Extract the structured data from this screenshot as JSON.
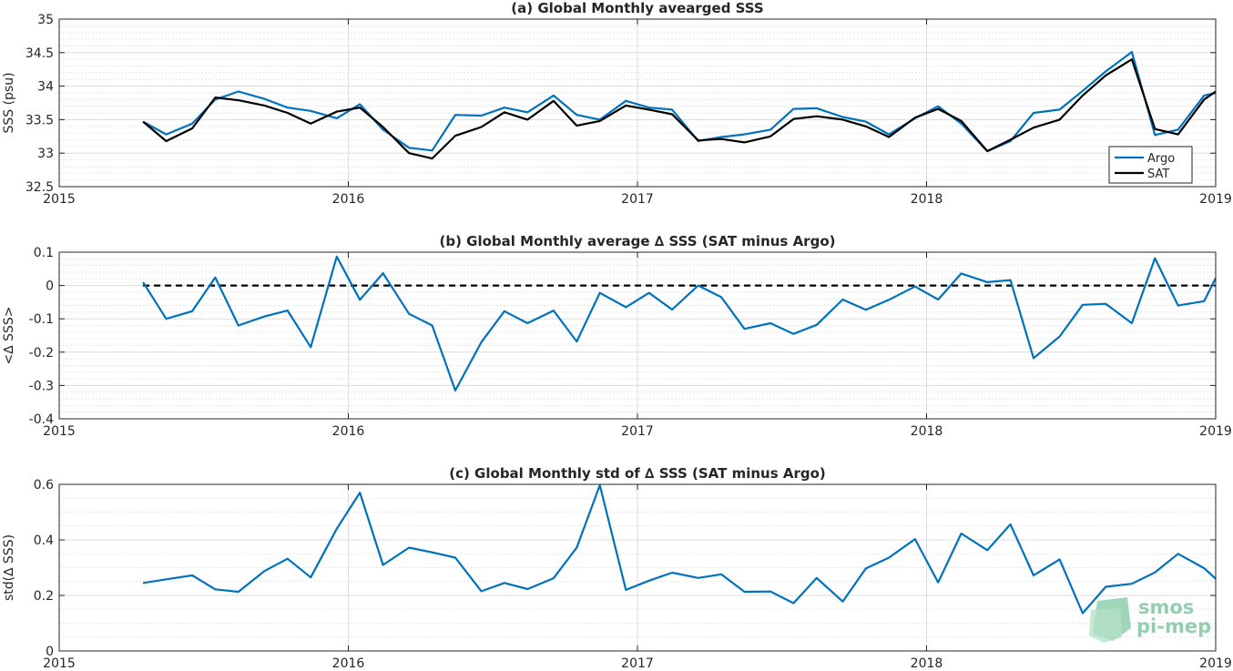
{
  "figure": {
    "logo": {
      "line1": "smos",
      "line2": "pi-mep"
    }
  },
  "chart_data": [
    {
      "type": "line",
      "title": "(a) Global Monthly avearged SSS",
      "xlabel": "",
      "ylabel": "SSS (psu)",
      "xlim": [
        2015,
        2019
      ],
      "ylim": [
        32.5,
        35
      ],
      "xticks": [
        "2015",
        "2016",
        "2017",
        "2018",
        "2019"
      ],
      "yticks": [
        "32.5",
        "33",
        "33.5",
        "34",
        "34.5",
        "35"
      ],
      "grid": true,
      "minor_grid": true,
      "legend": "bottom-right",
      "x": [
        2015.29,
        2015.37,
        2015.46,
        2015.54,
        2015.62,
        2015.71,
        2015.79,
        2015.87,
        2015.96,
        2016.04,
        2016.12,
        2016.21,
        2016.29,
        2016.37,
        2016.46,
        2016.54,
        2016.62,
        2016.71,
        2016.79,
        2016.87,
        2016.96,
        2017.04,
        2017.12,
        2017.21,
        2017.29,
        2017.37,
        2017.46,
        2017.54,
        2017.62,
        2017.71,
        2017.79,
        2017.87,
        2017.96,
        2018.04,
        2018.12,
        2018.21,
        2018.29,
        2018.37,
        2018.46,
        2018.54,
        2018.62,
        2018.71,
        2018.79,
        2018.87,
        2018.96,
        2019.0
      ],
      "series": [
        {
          "name": "Argo",
          "color": "#0072BD",
          "values": [
            33.47,
            33.28,
            33.44,
            33.8,
            33.92,
            33.81,
            33.68,
            33.63,
            33.52,
            33.73,
            33.35,
            33.08,
            33.04,
            33.57,
            33.56,
            33.68,
            33.61,
            33.86,
            33.57,
            33.5,
            33.78,
            33.68,
            33.65,
            33.18,
            33.24,
            33.28,
            33.35,
            33.66,
            33.67,
            33.54,
            33.47,
            33.28,
            33.52,
            33.7,
            33.44,
            33.03,
            33.18,
            33.6,
            33.65,
            33.93,
            34.22,
            34.51,
            33.27,
            33.35,
            33.86,
            33.9
          ]
        },
        {
          "name": "SAT",
          "color": "#000000",
          "values": [
            33.47,
            33.18,
            33.37,
            33.83,
            33.79,
            33.71,
            33.6,
            33.44,
            33.62,
            33.68,
            33.39,
            33.0,
            32.92,
            33.26,
            33.39,
            33.61,
            33.5,
            33.78,
            33.41,
            33.48,
            33.71,
            33.65,
            33.58,
            33.19,
            33.21,
            33.16,
            33.25,
            33.51,
            33.55,
            33.5,
            33.4,
            33.24,
            33.53,
            33.66,
            33.48,
            33.03,
            33.2,
            33.38,
            33.5,
            33.86,
            34.16,
            34.4,
            33.36,
            33.28,
            33.8,
            33.92
          ]
        }
      ]
    },
    {
      "type": "line",
      "title": "(b) Global Monthly average ∆ SSS (SAT minus Argo)",
      "xlabel": "",
      "ylabel": "<∆ SSS>",
      "xlim": [
        2015,
        2019
      ],
      "ylim": [
        -0.4,
        0.1
      ],
      "xticks": [
        "2015",
        "2016",
        "2017",
        "2018",
        "2019"
      ],
      "yticks": [
        "-0.4",
        "-0.3",
        "-0.2",
        "-0.1",
        "0",
        "0.1"
      ],
      "grid": true,
      "minor_grid": true,
      "reference_line": {
        "y": 0,
        "style": "dashed",
        "color": "#000000"
      },
      "x": [
        2015.29,
        2015.37,
        2015.46,
        2015.54,
        2015.62,
        2015.71,
        2015.79,
        2015.87,
        2015.96,
        2016.04,
        2016.12,
        2016.21,
        2016.29,
        2016.37,
        2016.46,
        2016.54,
        2016.62,
        2016.71,
        2016.79,
        2016.87,
        2016.96,
        2017.04,
        2017.12,
        2017.21,
        2017.29,
        2017.37,
        2017.46,
        2017.54,
        2017.62,
        2017.71,
        2017.79,
        2017.87,
        2017.96,
        2018.04,
        2018.12,
        2018.21,
        2018.29,
        2018.37,
        2018.46,
        2018.54,
        2018.62,
        2018.71,
        2018.79,
        2018.87,
        2018.96,
        2019.0
      ],
      "series": [
        {
          "color": "#0072BD",
          "values": [
            0.01,
            -0.1,
            -0.077,
            0.024,
            -0.12,
            -0.093,
            -0.075,
            -0.185,
            0.087,
            -0.043,
            0.037,
            -0.085,
            -0.12,
            -0.315,
            -0.17,
            -0.077,
            -0.113,
            -0.075,
            -0.168,
            -0.022,
            -0.065,
            -0.022,
            -0.072,
            0.0,
            -0.035,
            -0.13,
            -0.113,
            -0.145,
            -0.118,
            -0.042,
            -0.073,
            -0.043,
            -0.003,
            -0.042,
            0.036,
            0.01,
            0.016,
            -0.218,
            -0.153,
            -0.058,
            -0.055,
            -0.113,
            0.082,
            -0.06,
            -0.047,
            0.022
          ]
        }
      ]
    },
    {
      "type": "line",
      "title": "(c) Global Monthly std of ∆ SSS (SAT minus Argo)",
      "xlabel": "",
      "ylabel": "std(∆ SSS)",
      "xlim": [
        2015,
        2019
      ],
      "ylim": [
        0,
        0.6
      ],
      "xticks": [
        "2015",
        "2016",
        "2017",
        "2018",
        "2019"
      ],
      "yticks": [
        "0",
        "0.2",
        "0.4",
        "0.6"
      ],
      "grid": true,
      "minor_grid": true,
      "x": [
        2015.29,
        2015.37,
        2015.46,
        2015.54,
        2015.62,
        2015.71,
        2015.79,
        2015.87,
        2015.96,
        2016.04,
        2016.12,
        2016.21,
        2016.29,
        2016.37,
        2016.46,
        2016.54,
        2016.62,
        2016.71,
        2016.79,
        2016.87,
        2016.96,
        2017.04,
        2017.12,
        2017.21,
        2017.29,
        2017.37,
        2017.46,
        2017.54,
        2017.62,
        2017.71,
        2017.79,
        2017.87,
        2017.96,
        2018.04,
        2018.12,
        2018.21,
        2018.29,
        2018.37,
        2018.46,
        2018.54,
        2018.62,
        2018.71,
        2018.79,
        2018.87,
        2018.96,
        2019.0
      ],
      "series": [
        {
          "color": "#0072BD",
          "values": [
            0.245,
            0.258,
            0.272,
            0.222,
            0.213,
            0.288,
            0.332,
            0.265,
            0.44,
            0.57,
            0.31,
            0.372,
            0.355,
            0.336,
            0.215,
            0.245,
            0.223,
            0.262,
            0.372,
            0.597,
            0.22,
            0.253,
            0.282,
            0.263,
            0.276,
            0.213,
            0.214,
            0.172,
            0.263,
            0.178,
            0.297,
            0.336,
            0.403,
            0.247,
            0.423,
            0.363,
            0.456,
            0.272,
            0.33,
            0.136,
            0.231,
            0.242,
            0.283,
            0.35,
            0.298,
            0.26
          ]
        }
      ]
    }
  ]
}
